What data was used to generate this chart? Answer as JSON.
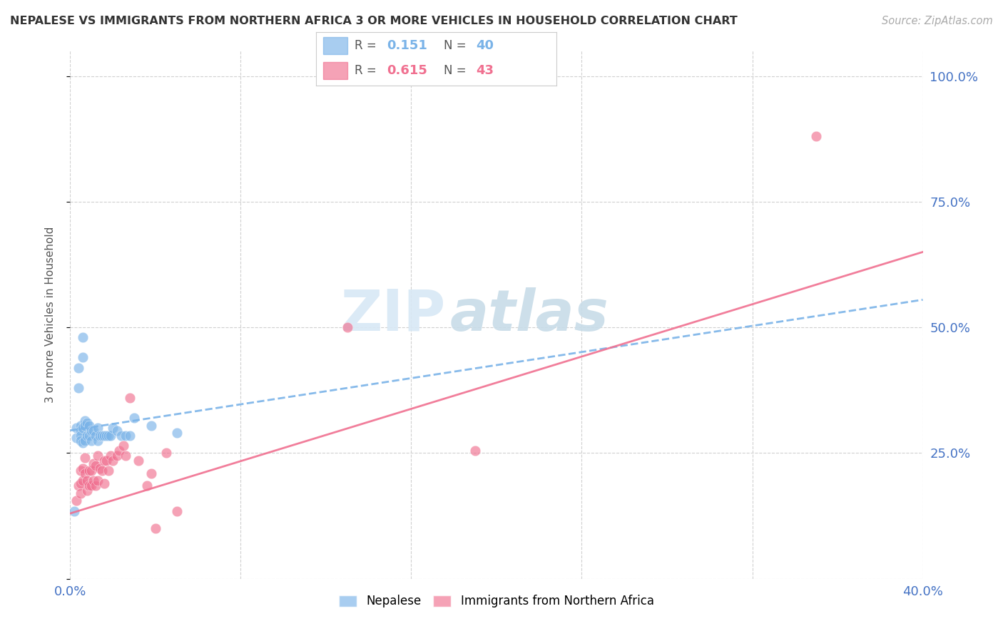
{
  "title": "NEPALESE VS IMMIGRANTS FROM NORTHERN AFRICA 3 OR MORE VEHICLES IN HOUSEHOLD CORRELATION CHART",
  "source": "Source: ZipAtlas.com",
  "ylabel": "3 or more Vehicles in Household",
  "xlim": [
    0.0,
    0.4
  ],
  "ylim": [
    0.0,
    1.05
  ],
  "xticks": [
    0.0,
    0.08,
    0.16,
    0.24,
    0.32,
    0.4
  ],
  "yticks_right": [
    0.0,
    0.25,
    0.5,
    0.75,
    1.0
  ],
  "ytick_right_labels": [
    "",
    "25.0%",
    "50.0%",
    "75.0%",
    "100.0%"
  ],
  "grid_color": "#d0d0d0",
  "background_color": "#ffffff",
  "watermark_zip": "ZIP",
  "watermark_atlas": "atlas",
  "nepalese_color": "#7ab3e8",
  "northafrica_color": "#f07090",
  "nepalese_R": 0.151,
  "nepalese_N": 40,
  "northafrica_R": 0.615,
  "northafrica_N": 43,
  "neo_line_x0": 0.0,
  "neo_line_y0": 0.295,
  "neo_line_x1": 0.4,
  "neo_line_y1": 0.555,
  "naf_line_x0": 0.0,
  "naf_line_y0": 0.13,
  "naf_line_x1": 0.4,
  "naf_line_y1": 0.65,
  "nepalese_scatter_x": [
    0.002,
    0.003,
    0.003,
    0.004,
    0.004,
    0.005,
    0.005,
    0.005,
    0.005,
    0.006,
    0.006,
    0.006,
    0.006,
    0.007,
    0.007,
    0.007,
    0.008,
    0.008,
    0.009,
    0.009,
    0.01,
    0.01,
    0.011,
    0.012,
    0.013,
    0.013,
    0.014,
    0.015,
    0.016,
    0.017,
    0.018,
    0.019,
    0.02,
    0.022,
    0.024,
    0.026,
    0.028,
    0.03,
    0.038,
    0.05
  ],
  "nepalese_scatter_y": [
    0.135,
    0.3,
    0.28,
    0.42,
    0.38,
    0.305,
    0.295,
    0.285,
    0.275,
    0.48,
    0.44,
    0.3,
    0.27,
    0.315,
    0.305,
    0.275,
    0.31,
    0.285,
    0.305,
    0.285,
    0.295,
    0.275,
    0.295,
    0.285,
    0.3,
    0.275,
    0.285,
    0.285,
    0.285,
    0.285,
    0.285,
    0.285,
    0.3,
    0.295,
    0.285,
    0.285,
    0.285,
    0.32,
    0.305,
    0.29
  ],
  "northafrica_scatter_x": [
    0.003,
    0.004,
    0.005,
    0.005,
    0.005,
    0.006,
    0.006,
    0.007,
    0.007,
    0.008,
    0.008,
    0.009,
    0.009,
    0.01,
    0.01,
    0.011,
    0.011,
    0.012,
    0.012,
    0.013,
    0.013,
    0.014,
    0.015,
    0.016,
    0.016,
    0.017,
    0.018,
    0.019,
    0.02,
    0.022,
    0.023,
    0.025,
    0.026,
    0.028,
    0.032,
    0.036,
    0.038,
    0.04,
    0.045,
    0.05,
    0.13,
    0.19,
    0.35
  ],
  "northafrica_scatter_y": [
    0.155,
    0.185,
    0.215,
    0.19,
    0.17,
    0.22,
    0.195,
    0.24,
    0.21,
    0.195,
    0.175,
    0.215,
    0.185,
    0.215,
    0.185,
    0.23,
    0.195,
    0.225,
    0.185,
    0.245,
    0.195,
    0.22,
    0.215,
    0.235,
    0.19,
    0.235,
    0.215,
    0.245,
    0.235,
    0.245,
    0.255,
    0.265,
    0.245,
    0.36,
    0.235,
    0.185,
    0.21,
    0.1,
    0.25,
    0.135,
    0.5,
    0.255,
    0.88
  ]
}
